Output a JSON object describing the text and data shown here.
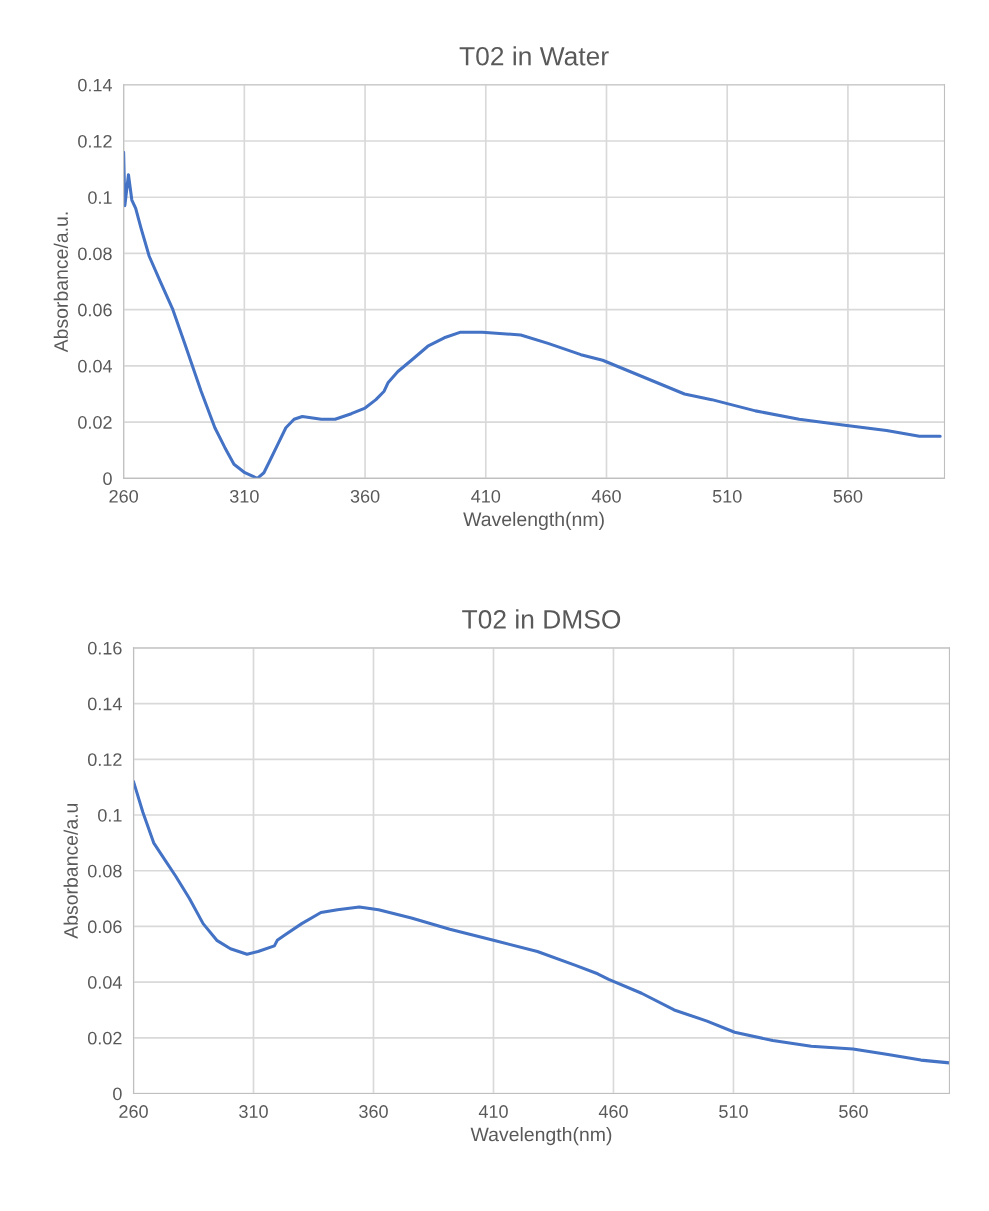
{
  "chart_data": [
    {
      "type": "line",
      "title": "T02 in Water",
      "xlabel": "Wavelength(nm)",
      "ylabel": "Absorbance/a.u.",
      "xlim": [
        260,
        600
      ],
      "xticks": [
        260,
        310,
        360,
        410,
        460,
        510,
        560
      ],
      "ylim": [
        0,
        0.14
      ],
      "yticks": [
        0,
        0.02,
        0.04,
        0.06,
        0.08,
        0.1,
        0.12,
        0.14
      ],
      "grid": true,
      "series": [
        {
          "color": "#4472c4",
          "x": [
            260,
            260.5,
            262,
            263.4,
            265,
            267.2,
            270.6,
            275.2,
            280.4,
            285.3,
            292.1,
            297.8,
            301.9,
            305.7,
            310.2,
            315.4,
            318.1,
            320.4,
            323.8,
            327.2,
            330.6,
            334,
            341.9,
            347.6,
            354.3,
            360,
            364.5,
            367.9,
            369.5,
            373.6,
            379.2,
            386,
            392.8,
            399.6,
            408.6,
            424.5,
            435.8,
            449.4,
            458.4,
            469.7,
            481,
            492.3,
            503.6,
            521.7,
            539.8,
            557.9,
            576,
            589.6,
            598.2
          ],
          "values": [
            0.116,
            0.097,
            0.108,
            0.099,
            0.096,
            0.089,
            0.079,
            0.07,
            0.06,
            0.048,
            0.031,
            0.018,
            0.011,
            0.005,
            0.002,
            0.0,
            0.002,
            0.006,
            0.012,
            0.018,
            0.021,
            0.022,
            0.021,
            0.021,
            0.023,
            0.025,
            0.028,
            0.031,
            0.034,
            0.038,
            0.042,
            0.047,
            0.05,
            0.052,
            0.052,
            0.051,
            0.048,
            0.044,
            0.042,
            0.038,
            0.034,
            0.03,
            0.028,
            0.024,
            0.021,
            0.019,
            0.017,
            0.015,
            0.015
          ]
        }
      ]
    },
    {
      "type": "line",
      "title": "T02 in DMSO",
      "xlabel": "Wavelength(nm)",
      "ylabel": "Absorbance/a.u",
      "xlim": [
        260,
        600
      ],
      "xticks": [
        260,
        310,
        360,
        410,
        460,
        510,
        560
      ],
      "ylim": [
        0,
        0.16
      ],
      "yticks": [
        0,
        0.02,
        0.04,
        0.06,
        0.08,
        0.1,
        0.12,
        0.14,
        0.16
      ],
      "grid": true,
      "series": [
        {
          "color": "#4472c4",
          "x": [
            260,
            263.9,
            268.4,
            273,
            277.6,
            283.3,
            289,
            294.7,
            300.4,
            307.3,
            311.9,
            318.7,
            319.9,
            323.2,
            330.1,
            338.1,
            345,
            354.1,
            362.1,
            375.8,
            391.8,
            410,
            428.3,
            444.2,
            453.4,
            458,
            471.7,
            485.3,
            499,
            510.5,
            526.4,
            542.4,
            559.8,
            574.4,
            588.1,
            600
          ],
          "values": [
            0.112,
            0.101,
            0.09,
            0.084,
            0.078,
            0.07,
            0.061,
            0.055,
            0.052,
            0.05,
            0.051,
            0.053,
            0.055,
            0.057,
            0.061,
            0.065,
            0.066,
            0.067,
            0.066,
            0.063,
            0.059,
            0.055,
            0.051,
            0.046,
            0.043,
            0.041,
            0.036,
            0.03,
            0.026,
            0.022,
            0.019,
            0.017,
            0.016,
            0.014,
            0.012,
            0.011
          ]
        }
      ]
    }
  ]
}
